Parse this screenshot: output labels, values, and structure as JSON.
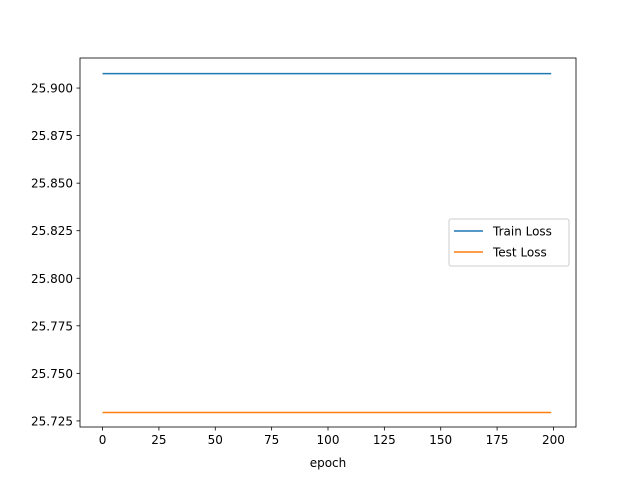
{
  "chart_data": {
    "type": "line",
    "title": "",
    "xlabel": "epoch",
    "ylabel": "",
    "xlim": [
      -10,
      210
    ],
    "ylim": [
      25.7218,
      25.9158
    ],
    "xticks": [
      0,
      25,
      50,
      75,
      100,
      125,
      150,
      175,
      200
    ],
    "yticks": [
      25.725,
      25.75,
      25.775,
      25.8,
      25.825,
      25.85,
      25.875,
      25.9
    ],
    "ytick_labels": [
      "25.725",
      "25.750",
      "25.775",
      "25.800",
      "25.825",
      "25.850",
      "25.875",
      "25.900"
    ],
    "grid": false,
    "legend_position": "center-right",
    "series": [
      {
        "name": "Train Loss",
        "color": "#1f77b4",
        "x": [
          0,
          199
        ],
        "y": [
          25.9076,
          25.9076
        ]
      },
      {
        "name": "Test Loss",
        "color": "#ff7f0e",
        "x": [
          0,
          199
        ],
        "y": [
          25.7294,
          25.7294
        ]
      }
    ]
  }
}
